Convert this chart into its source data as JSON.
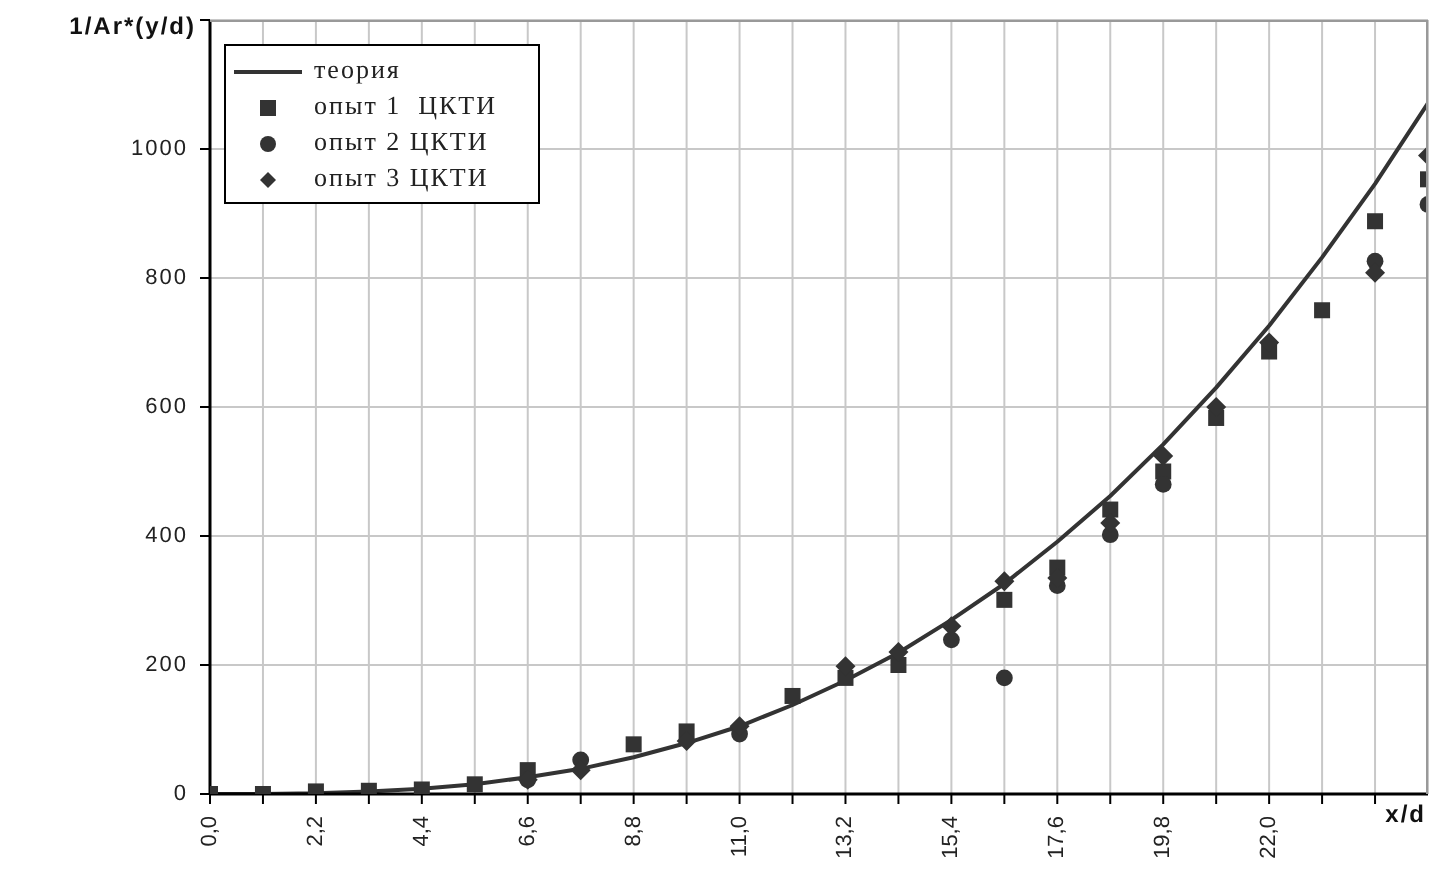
{
  "chart_data": {
    "type": "scatter",
    "xlabel": "x/d",
    "ylabel": "1/Ar*(y/d)",
    "x": [
      0,
      1.1,
      2.2,
      3.3,
      4.4,
      5.5,
      6.6,
      7.7,
      8.8,
      9.9,
      11,
      12.1,
      13.2,
      14.3,
      15.4,
      16.5,
      17.6,
      18.7,
      19.8,
      20.9,
      22,
      23.1,
      24.2,
      25.3
    ],
    "series": [
      {
        "name": "теория",
        "type": "line",
        "color": "#333333",
        "marker": "none",
        "line_style": "solid",
        "values": [
          0,
          0,
          1,
          4,
          8,
          15,
          26,
          39,
          57,
          79,
          105,
          138,
          176,
          219,
          270,
          326,
          391,
          462,
          542,
          630,
          726,
          832,
          946,
          1071
        ]
      },
      {
        "name": "опыт 1  ЦКТИ",
        "color": "#333333",
        "marker": "square",
        "values": [
          0,
          0,
          4,
          5,
          7,
          15,
          37,
          null,
          77,
          97,
          null,
          152,
          180,
          200,
          null,
          301,
          351,
          441,
          500,
          583,
          686,
          750,
          888,
          953
        ]
      },
      {
        "name": "опыт 2 ЦКТИ",
        "color": "#333333",
        "marker": "circle",
        "values": [
          null,
          null,
          null,
          null,
          null,
          null,
          22,
          53,
          null,
          null,
          93,
          null,
          null,
          null,
          239,
          180,
          323,
          402,
          480,
          null,
          null,
          null,
          826,
          914
        ]
      },
      {
        "name": "опыт 3 ЦКТИ",
        "color": "#333333",
        "marker": "diamond",
        "values": [
          null,
          null,
          null,
          null,
          null,
          null,
          22,
          37,
          null,
          82,
          105,
          null,
          198,
          220,
          260,
          330,
          335,
          420,
          524,
          600,
          700,
          null,
          808,
          990
        ]
      }
    ],
    "xlim": [
      0,
      25.3
    ],
    "xticks": [
      {
        "value": 0,
        "label": "0,0"
      },
      {
        "value": 1.1,
        "label": null
      },
      {
        "value": 2.2,
        "label": "2,2"
      },
      {
        "value": 3.3,
        "label": null
      },
      {
        "value": 4.4,
        "label": "4,4"
      },
      {
        "value": 5.5,
        "label": null
      },
      {
        "value": 6.6,
        "label": "6,6"
      },
      {
        "value": 7.7,
        "label": null
      },
      {
        "value": 8.8,
        "label": "8,8"
      },
      {
        "value": 9.9,
        "label": null
      },
      {
        "value": 11,
        "label": "11,0"
      },
      {
        "value": 12.1,
        "label": null
      },
      {
        "value": 13.2,
        "label": "13,2"
      },
      {
        "value": 14.3,
        "label": null
      },
      {
        "value": 15.4,
        "label": "15,4"
      },
      {
        "value": 16.5,
        "label": null
      },
      {
        "value": 17.6,
        "label": "17,6"
      },
      {
        "value": 18.7,
        "label": null
      },
      {
        "value": 19.8,
        "label": "19,8"
      },
      {
        "value": 20.9,
        "label": null
      },
      {
        "value": 22,
        "label": "22,0"
      },
      {
        "value": 23.1,
        "label": null
      },
      {
        "value": 24.2,
        "label": null
      }
    ],
    "ylim": [
      0,
      1200
    ],
    "yticks": [
      0,
      200,
      400,
      600,
      800,
      1000,
      {
        "value": 1200,
        "label": null
      }
    ],
    "grid": true,
    "legend": "top left"
  }
}
